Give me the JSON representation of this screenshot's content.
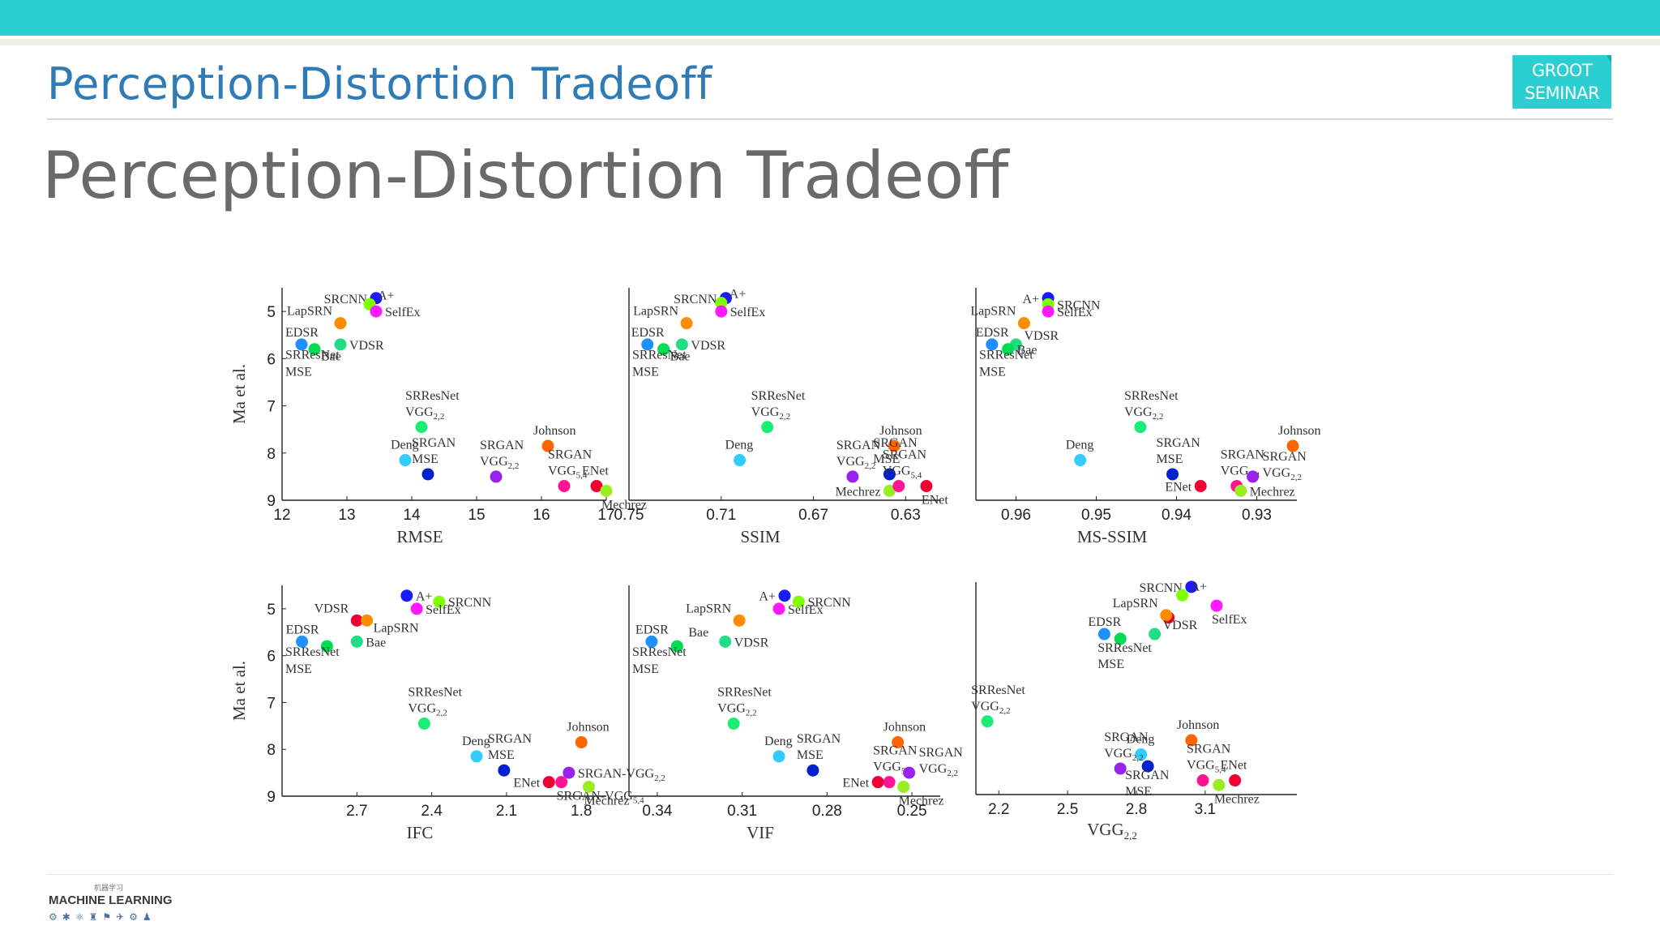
{
  "header": {
    "title": "Perception-Distortion Tradeoff",
    "badge_line1": "GROOT",
    "badge_line2": "SEMINAR"
  },
  "slide": {
    "title": "Perception-Distortion Tradeoff"
  },
  "footer": {
    "logo_text": "MACHINE LEARNING",
    "logo_hanzi": "机器学习"
  },
  "colors": {
    "accent": "#2bcfd2",
    "title_blue": "#2f7bb6",
    "slide_title": "#6a6a6a"
  },
  "chart_data": [
    {
      "type": "scatter",
      "xlabel": "RMSE",
      "ylabel": "Ma et al.",
      "xlim": [
        12,
        17
      ],
      "ylim": [
        9,
        4.5
      ],
      "xticks": [
        "12",
        "13",
        "14",
        "15",
        "16",
        "17"
      ],
      "xtick_values": [
        12,
        13,
        14,
        15,
        16,
        17
      ],
      "yticks": [
        "5",
        "6",
        "7",
        "8",
        "9"
      ],
      "ytick_values": [
        5,
        6,
        7,
        8,
        9
      ],
      "points": [
        {
          "x": 13.45,
          "y": 4.72,
          "color": "#1a1aff",
          "label": "SRCNN",
          "lpos": "left"
        },
        {
          "x": 13.35,
          "y": 4.85,
          "color": "#7fff00",
          "label": "A+",
          "lpos": "right_up"
        },
        {
          "x": 13.45,
          "y": 5.0,
          "color": "#ff19ff",
          "label": "SelfEx",
          "lpos": "right"
        },
        {
          "x": 12.9,
          "y": 5.25,
          "color": "#ff8c00",
          "label": "LapSRN",
          "lpos": "left_up"
        },
        {
          "x": 12.9,
          "y": 5.7,
          "color": "#22dd88",
          "label": "VDSR",
          "lpos": "right"
        },
        {
          "x": 12.3,
          "y": 5.7,
          "color": "#1e90ff",
          "label": "EDSR",
          "lpos": "up"
        },
        {
          "x": 12.5,
          "y": 5.8,
          "color": "#00dd55",
          "label": "Bae",
          "lpos": "right_down"
        },
        {
          "x": 14.15,
          "y": 7.45,
          "color": "#1aee77",
          "label": "SRResNet VGG2.2",
          "lpos": "above"
        },
        {
          "x": 13.9,
          "y": 8.15,
          "color": "#33ccff",
          "label": "Deng",
          "lpos": "above"
        },
        {
          "x": 14.25,
          "y": 8.45,
          "color": "#0022cc",
          "label": "SRGAN MSE",
          "lpos": "above"
        },
        {
          "x": 15.3,
          "y": 8.5,
          "color": "#9922ee",
          "label": "SRGAN VGG2.2",
          "lpos": "above"
        },
        {
          "x": 16.1,
          "y": 7.85,
          "color": "#ff6600",
          "label": "Johnson",
          "lpos": "above"
        },
        {
          "x": 16.35,
          "y": 8.7,
          "color": "#ff1493",
          "label": "SRGAN VGG5.4",
          "lpos": "above"
        },
        {
          "x": 16.85,
          "y": 8.7,
          "color": "#ee0033",
          "label": "ENet",
          "lpos": "above"
        },
        {
          "x": 17.0,
          "y": 8.8,
          "color": "#99ee22",
          "label": "Mechrez",
          "lpos": "below"
        }
      ],
      "extra_labels": [
        "SRResNet MSE"
      ]
    },
    {
      "type": "scatter",
      "xlabel": "SSIM",
      "ylabel": "",
      "xlim": [
        0.75,
        0.615
      ],
      "ylim": [
        9,
        4.5
      ],
      "xticks": [
        "0.75",
        "0.71",
        "0.67",
        "0.63"
      ],
      "xtick_values": [
        0.75,
        0.71,
        0.67,
        0.63
      ],
      "yticks": [],
      "ytick_values": [],
      "points": [
        {
          "x": 0.708,
          "y": 4.72,
          "color": "#1a1aff",
          "label": "SRCNN",
          "lpos": "left"
        },
        {
          "x": 0.71,
          "y": 4.82,
          "color": "#7fff00",
          "label": "A+",
          "lpos": "right_up"
        },
        {
          "x": 0.71,
          "y": 5.0,
          "color": "#ff19ff",
          "label": "SelfEx",
          "lpos": "right"
        },
        {
          "x": 0.725,
          "y": 5.25,
          "color": "#ff8c00",
          "label": "LapSRN",
          "lpos": "left_up"
        },
        {
          "x": 0.727,
          "y": 5.7,
          "color": "#22dd88",
          "label": "VDSR",
          "lpos": "right"
        },
        {
          "x": 0.742,
          "y": 5.7,
          "color": "#1e90ff",
          "label": "EDSR",
          "lpos": "up"
        },
        {
          "x": 0.735,
          "y": 5.8,
          "color": "#00dd55",
          "label": "Bae",
          "lpos": "right_down"
        },
        {
          "x": 0.69,
          "y": 7.45,
          "color": "#1aee77",
          "label": "SRResNet VGG2.2",
          "lpos": "above"
        },
        {
          "x": 0.702,
          "y": 8.15,
          "color": "#33ccff",
          "label": "Deng",
          "lpos": "above"
        },
        {
          "x": 0.653,
          "y": 8.5,
          "color": "#9922ee",
          "label": "SRGAN VGG2.2",
          "lpos": "above"
        },
        {
          "x": 0.635,
          "y": 7.85,
          "color": "#ff6600",
          "label": "Johnson",
          "lpos": "above"
        },
        {
          "x": 0.637,
          "y": 8.45,
          "color": "#0022cc",
          "label": "SRGAN MSE",
          "lpos": "above"
        },
        {
          "x": 0.637,
          "y": 8.8,
          "color": "#99ee22",
          "label": "Mechrez",
          "lpos": "left"
        },
        {
          "x": 0.633,
          "y": 8.7,
          "color": "#ff1493",
          "label": "SRGAN VGG5.4",
          "lpos": "above"
        },
        {
          "x": 0.621,
          "y": 8.7,
          "color": "#ee0033",
          "label": "ENet",
          "lpos": "below"
        }
      ],
      "extra_labels": [
        "SRResNet MSE"
      ]
    },
    {
      "type": "scatter",
      "xlabel": "MS-SSIM",
      "ylabel": "",
      "xlim": [
        0.965,
        0.925
      ],
      "ylim": [
        9,
        4.5
      ],
      "xticks": [
        "0.96",
        "0.95",
        "0.94",
        "0.93"
      ],
      "xtick_values": [
        0.96,
        0.95,
        0.94,
        0.93
      ],
      "yticks": [],
      "ytick_values": [],
      "points": [
        {
          "x": 0.956,
          "y": 4.72,
          "color": "#1a1aff",
          "label": "A+",
          "lpos": "left"
        },
        {
          "x": 0.956,
          "y": 4.85,
          "color": "#7fff00",
          "label": "SRCNN",
          "lpos": "right"
        },
        {
          "x": 0.956,
          "y": 5.0,
          "color": "#ff19ff",
          "label": "SelfEx",
          "lpos": "right"
        },
        {
          "x": 0.959,
          "y": 5.25,
          "color": "#ff8c00",
          "label": "LapSRN",
          "lpos": "left_up"
        },
        {
          "x": 0.96,
          "y": 5.7,
          "color": "#22dd88",
          "label": "VDSR",
          "lpos": "right_up"
        },
        {
          "x": 0.963,
          "y": 5.7,
          "color": "#1e90ff",
          "label": "EDSR",
          "lpos": "up"
        },
        {
          "x": 0.961,
          "y": 5.8,
          "color": "#00dd55",
          "label": "Bae",
          "lpos": "right"
        },
        {
          "x": 0.9445,
          "y": 7.45,
          "color": "#1aee77",
          "label": "SRResNet VGG2.2",
          "lpos": "above"
        },
        {
          "x": 0.952,
          "y": 8.15,
          "color": "#33ccff",
          "label": "Deng",
          "lpos": "above"
        },
        {
          "x": 0.9405,
          "y": 8.45,
          "color": "#0022cc",
          "label": "SRGAN MSE",
          "lpos": "above"
        },
        {
          "x": 0.937,
          "y": 8.7,
          "color": "#ee0033",
          "label": "ENet",
          "lpos": "left"
        },
        {
          "x": 0.9325,
          "y": 8.7,
          "color": "#ff1493",
          "label": "SRGAN VGG5.4",
          "lpos": "above"
        },
        {
          "x": 0.932,
          "y": 8.8,
          "color": "#99ee22",
          "label": "Mechrez",
          "lpos": "right"
        },
        {
          "x": 0.9305,
          "y": 8.5,
          "color": "#9922ee",
          "label": "SRGAN VGG2.2",
          "lpos": "right"
        },
        {
          "x": 0.9255,
          "y": 7.85,
          "color": "#ff6600",
          "label": "Johnson",
          "lpos": "above"
        }
      ],
      "extra_labels": [
        "SRResNet MSE"
      ]
    },
    {
      "type": "scatter",
      "xlabel": "IFC",
      "ylabel": "Ma et al.",
      "xlim": [
        3.0,
        1.7
      ],
      "ylim": [
        9,
        4.5
      ],
      "xticks": [
        "2.7",
        "2.4",
        "2.1",
        "1.8"
      ],
      "xtick_values": [
        2.7,
        2.4,
        2.1,
        1.8
      ],
      "yticks": [
        "5",
        "6",
        "7",
        "8",
        "9"
      ],
      "ytick_values": [
        5,
        6,
        7,
        8,
        9
      ],
      "points": [
        {
          "x": 2.5,
          "y": 4.72,
          "color": "#1a1aff",
          "label": "A+",
          "lpos": "right"
        },
        {
          "x": 2.37,
          "y": 4.85,
          "color": "#7fff00",
          "label": "SRCNN",
          "lpos": "right"
        },
        {
          "x": 2.46,
          "y": 5.0,
          "color": "#ff19ff",
          "label": "SelfEx",
          "lpos": "right"
        },
        {
          "x": 2.7,
          "y": 5.25,
          "color": "#ee0033",
          "label": "VDSR",
          "lpos": "left_up"
        },
        {
          "x": 2.66,
          "y": 5.25,
          "color": "#ff8c00",
          "label": "LapSRN",
          "lpos": "right_down"
        },
        {
          "x": 2.7,
          "y": 5.7,
          "color": "#22dd88",
          "label": "Bae",
          "lpos": "right"
        },
        {
          "x": 2.92,
          "y": 5.7,
          "color": "#1e90ff",
          "label": "EDSR",
          "lpos": "up"
        },
        {
          "x": 2.82,
          "y": 5.8,
          "color": "#00dd55",
          "label": "",
          "lpos": "none"
        },
        {
          "x": 2.43,
          "y": 7.45,
          "color": "#1aee77",
          "label": "SRResNet VGG2.2",
          "lpos": "above"
        },
        {
          "x": 2.22,
          "y": 8.15,
          "color": "#33ccff",
          "label": "Deng",
          "lpos": "above"
        },
        {
          "x": 2.11,
          "y": 8.45,
          "color": "#0022cc",
          "label": "SRGAN MSE",
          "lpos": "above"
        },
        {
          "x": 1.8,
          "y": 7.85,
          "color": "#ff6600",
          "label": "Johnson",
          "lpos": "above"
        },
        {
          "x": 1.85,
          "y": 8.5,
          "color": "#9922ee",
          "label": "SRGAN-VGG2.2",
          "lpos": "right"
        },
        {
          "x": 1.93,
          "y": 8.7,
          "color": "#ee0033",
          "label": "ENet",
          "lpos": "left"
        },
        {
          "x": 1.88,
          "y": 8.7,
          "color": "#ff1493",
          "label": "SRGAN-VGG5.4",
          "lpos": "below"
        },
        {
          "x": 1.77,
          "y": 8.8,
          "color": "#99ee22",
          "label": "Mechrez",
          "lpos": "below"
        }
      ],
      "extra_labels": [
        "SRResNet MSE"
      ]
    },
    {
      "type": "scatter",
      "xlabel": "VIF",
      "ylabel": "",
      "xlim": [
        0.35,
        0.24
      ],
      "ylim": [
        9,
        4.5
      ],
      "xticks": [
        "0.34",
        "0.31",
        "0.28",
        "0.25"
      ],
      "xtick_values": [
        0.34,
        0.31,
        0.28,
        0.25
      ],
      "yticks": [],
      "ytick_values": [],
      "points": [
        {
          "x": 0.295,
          "y": 4.72,
          "color": "#1a1aff",
          "label": "A+",
          "lpos": "left"
        },
        {
          "x": 0.29,
          "y": 4.85,
          "color": "#7fff00",
          "label": "SRCNN",
          "lpos": "right"
        },
        {
          "x": 0.297,
          "y": 5.0,
          "color": "#ff19ff",
          "label": "SelfEx",
          "lpos": "right"
        },
        {
          "x": 0.311,
          "y": 5.25,
          "color": "#ff8c00",
          "label": "LapSRN",
          "lpos": "left_up"
        },
        {
          "x": 0.316,
          "y": 5.7,
          "color": "#22dd88",
          "label": "VDSR",
          "lpos": "right"
        },
        {
          "x": 0.342,
          "y": 5.7,
          "color": "#1e90ff",
          "label": "EDSR",
          "lpos": "up"
        },
        {
          "x": 0.333,
          "y": 5.8,
          "color": "#00dd55",
          "label": "Bae",
          "lpos": "above_r"
        },
        {
          "x": 0.313,
          "y": 7.45,
          "color": "#1aee77",
          "label": "SRResNet VGG2.2",
          "lpos": "above"
        },
        {
          "x": 0.297,
          "y": 8.15,
          "color": "#33ccff",
          "label": "Deng",
          "lpos": "above"
        },
        {
          "x": 0.285,
          "y": 8.45,
          "color": "#0022cc",
          "label": "SRGAN MSE",
          "lpos": "above"
        },
        {
          "x": 0.255,
          "y": 7.85,
          "color": "#ff6600",
          "label": "Johnson",
          "lpos": "above"
        },
        {
          "x": 0.262,
          "y": 8.7,
          "color": "#ee0033",
          "label": "ENet",
          "lpos": "left"
        },
        {
          "x": 0.258,
          "y": 8.7,
          "color": "#ff1493",
          "label": "SRGAN VGG5.4",
          "lpos": "above"
        },
        {
          "x": 0.253,
          "y": 8.8,
          "color": "#99ee22",
          "label": "Mechrez",
          "lpos": "below"
        },
        {
          "x": 0.251,
          "y": 8.5,
          "color": "#9922ee",
          "label": "SRGAN VGG2.2",
          "lpos": "right"
        }
      ],
      "extra_labels": [
        "SRResNet MSE"
      ]
    },
    {
      "type": "scatter",
      "xlabel": "VGG2,2",
      "ylabel": "",
      "xlim": [
        2.1,
        3.5
      ],
      "ylim": [
        9,
        4.5
      ],
      "xticks": [
        "2.2",
        "2.5",
        "2.8",
        "3.1"
      ],
      "xtick_values": [
        2.2,
        2.5,
        2.8,
        3.1
      ],
      "yticks": [],
      "ytick_values": [],
      "points": [
        {
          "x": 3.04,
          "y": 4.6,
          "color": "#1a1aff",
          "label": "SRCNN",
          "lpos": "left"
        },
        {
          "x": 3.0,
          "y": 4.78,
          "color": "#7fff00",
          "label": "A+",
          "lpos": "right_up"
        },
        {
          "x": 3.15,
          "y": 5.0,
          "color": "#ff19ff",
          "label": "SelfEx",
          "lpos": "below"
        },
        {
          "x": 2.94,
          "y": 5.25,
          "color": "#ee0033",
          "label": "",
          "lpos": "none"
        },
        {
          "x": 2.93,
          "y": 5.2,
          "color": "#ff8c00",
          "label": "LapSRN",
          "lpos": "left_up"
        },
        {
          "x": 2.88,
          "y": 5.6,
          "color": "#22dd88",
          "label": "VDSR",
          "lpos": "right_up"
        },
        {
          "x": 2.66,
          "y": 5.6,
          "color": "#1e90ff",
          "label": "EDSR",
          "lpos": "up"
        },
        {
          "x": 2.73,
          "y": 5.7,
          "color": "#00dd55",
          "label": "SRResNet MSE",
          "lpos": "below"
        },
        {
          "x": 2.15,
          "y": 7.45,
          "color": "#1aee77",
          "label": "SRResNet VGG2.2",
          "lpos": "above"
        },
        {
          "x": 2.82,
          "y": 8.15,
          "color": "#33ccff",
          "label": "Deng",
          "lpos": "above"
        },
        {
          "x": 2.73,
          "y": 8.45,
          "color": "#9922ee",
          "label": "SRGAN VGG2.2",
          "lpos": "above"
        },
        {
          "x": 2.85,
          "y": 8.4,
          "color": "#0022cc",
          "label": "SRGAN MSE",
          "lpos": "below"
        },
        {
          "x": 3.04,
          "y": 7.85,
          "color": "#ff6600",
          "label": "Johnson",
          "lpos": "above"
        },
        {
          "x": 3.09,
          "y": 8.7,
          "color": "#ff1493",
          "label": "SRGAN VGG5.4",
          "lpos": "above"
        },
        {
          "x": 3.16,
          "y": 8.8,
          "color": "#99ee22",
          "label": "Mechrez",
          "lpos": "below"
        },
        {
          "x": 3.23,
          "y": 8.7,
          "color": "#ee0033",
          "label": "ENet",
          "lpos": "above"
        }
      ],
      "extra_labels": []
    }
  ]
}
